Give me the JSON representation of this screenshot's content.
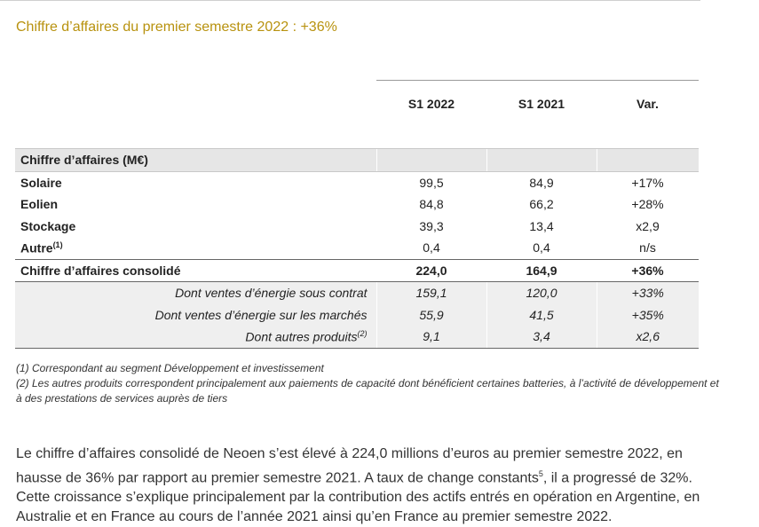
{
  "title": "Chiffre d’affaires du premier semestre 2022 : +36%",
  "table": {
    "columns": [
      "S1 2022",
      "S1 2021",
      "Var."
    ],
    "section_label": "Chiffre d’affaires (M€)",
    "rows": [
      {
        "label": "Solaire",
        "s1_2022": "99,5",
        "s1_2021": "84,9",
        "var": "+17%"
      },
      {
        "label": "Eolien",
        "s1_2022": "84,8",
        "s1_2021": "66,2",
        "var": "+28%"
      },
      {
        "label": "Stockage",
        "s1_2022": "39,3",
        "s1_2021": "13,4",
        "var": "x2,9"
      },
      {
        "label": "Autre",
        "sup": "(1)",
        "s1_2022": "0,4",
        "s1_2021": "0,4",
        "var": "n/s"
      }
    ],
    "total": {
      "label": "Chiffre d’affaires consolidé",
      "s1_2022": "224,0",
      "s1_2021": "164,9",
      "var": "+36%"
    },
    "sub_rows": [
      {
        "label": "Dont ventes d’énergie sous contrat",
        "s1_2022": "159,1",
        "s1_2021": "120,0",
        "var": "+33%"
      },
      {
        "label": "Dont ventes d’énergie sur les marchés",
        "s1_2022": "55,9",
        "s1_2021": "41,5",
        "var": "+35%"
      },
      {
        "label": "Dont autres produits",
        "sup": "(2)",
        "s1_2022": "9,1",
        "s1_2021": "3,4",
        "var": "x2,6"
      }
    ]
  },
  "footnotes": [
    "(1) Correspondant au segment Développement et investissement",
    "(2) Les autres produits correspondent principalement aux paiements de capacité dont bénéficient certaines batteries, à l’activité de développement et à des prestations de services auprès de tiers"
  ],
  "paragraph": {
    "before_sup": "Le chiffre d’affaires consolidé de Neoen s’est élevé à 224,0 millions d’euros au premier semestre 2022, en hausse de 36% par rapport au premier semestre 2021. A taux de change constants",
    "sup": "5",
    "after_sup": ", il a progressé de 32%. Cette croissance s’explique principalement par la contribution des actifs entrés en opération en Argentine, en Australie et en France au cours de l’année 2021 ainsi qu’en France au premier semestre 2022."
  }
}
